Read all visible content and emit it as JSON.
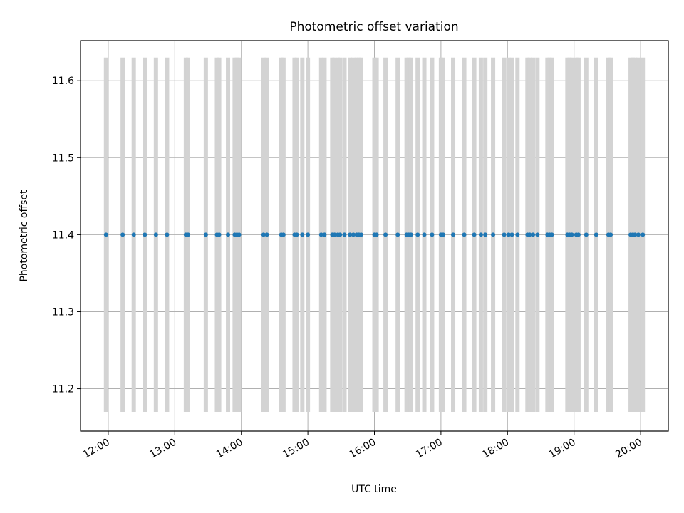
{
  "chart_data": {
    "type": "scatter",
    "title": "Photometric offset variation",
    "xlabel": "UTC time",
    "ylabel": "Photometric offset",
    "x_unit": "hours UTC",
    "ylim": [
      11.145,
      11.652
    ],
    "xlim": [
      "11:35",
      "20:25"
    ],
    "x_ticks": [
      "12:00",
      "13:00",
      "14:00",
      "15:00",
      "16:00",
      "17:00",
      "18:00",
      "19:00",
      "20:00"
    ],
    "y_ticks": [
      "11.2",
      "11.3",
      "11.4",
      "11.5",
      "11.6"
    ],
    "grid": true,
    "error_bar_range": [
      11.17,
      11.63
    ],
    "colors": {
      "points": "#1f77b4",
      "error_bars": "#d3d3d3",
      "grid": "#b0b0b0"
    },
    "times": [
      "11:58",
      "12:13",
      "12:23",
      "12:33",
      "12:43",
      "12:53",
      "13:10",
      "13:12",
      "13:28",
      "13:38",
      "13:40",
      "13:48",
      "13:54",
      "13:56",
      "13:58",
      "14:20",
      "14:23",
      "14:36",
      "14:38",
      "14:48",
      "14:50",
      "14:55",
      "15:00",
      "15:12",
      "15:15",
      "15:22",
      "15:24",
      "15:27",
      "15:29",
      "15:33",
      "15:38",
      "15:41",
      "15:44",
      "15:46",
      "15:48",
      "16:00",
      "16:02",
      "16:10",
      "16:21",
      "16:29",
      "16:31",
      "16:33",
      "16:39",
      "16:45",
      "16:52",
      "17:00",
      "17:02",
      "17:11",
      "17:21",
      "17:30",
      "17:36",
      "17:40",
      "17:47",
      "17:57",
      "18:01",
      "18:04",
      "18:09",
      "18:18",
      "18:20",
      "18:23",
      "18:27",
      "18:36",
      "18:38",
      "18:40",
      "18:54",
      "18:56",
      "18:58",
      "19:02",
      "19:04",
      "19:11",
      "19:20",
      "19:31",
      "19:33",
      "19:51",
      "19:53",
      "19:55",
      "19:58",
      "20:02"
    ],
    "values_note": "11.4"
  }
}
